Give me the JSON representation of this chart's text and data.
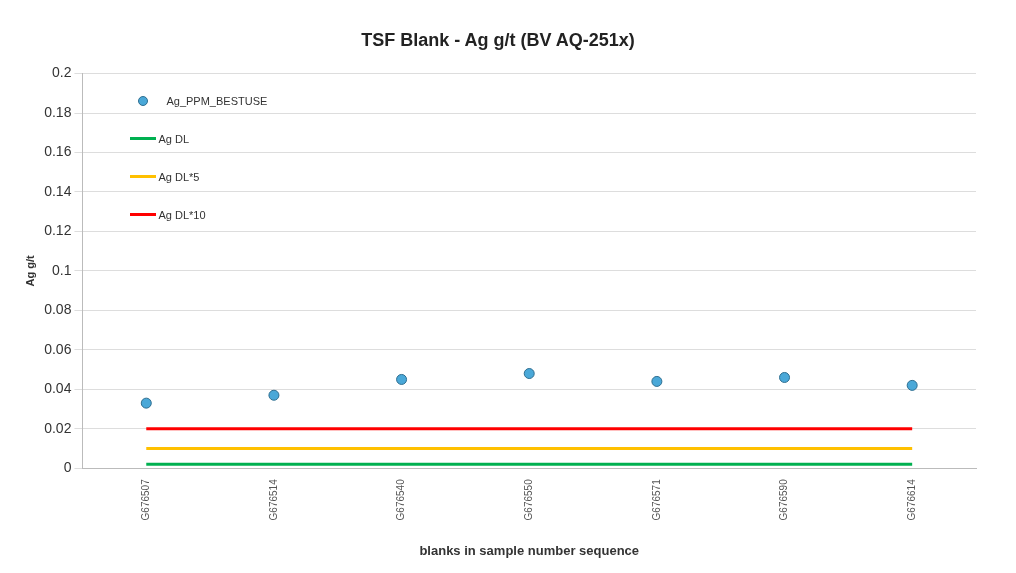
{
  "chart_data": {
    "type": "scatter",
    "title": "TSF Blank - Ag g/t (BV AQ-251x)",
    "xlabel": "blanks in sample number sequence",
    "ylabel": "Ag g/t",
    "categories": [
      "G676507",
      "G676514",
      "G676540",
      "G676550",
      "G676571",
      "G676590",
      "G676614"
    ],
    "series": [
      {
        "name": "Ag_PPM_BESTUSE",
        "color": "#4aa8d8",
        "marker": "circle",
        "values": [
          0.033,
          0.037,
          0.045,
          0.048,
          0.044,
          0.046,
          0.042
        ]
      },
      {
        "name": "Ag DL",
        "type": "line",
        "color": "#00b050",
        "marker": "none",
        "values": [
          0.002,
          0.002,
          0.002,
          0.002,
          0.002,
          0.002,
          0.002
        ]
      },
      {
        "name": "Ag DL*5",
        "type": "line",
        "color": "#ffc000",
        "marker": "none",
        "values": [
          0.01,
          0.01,
          0.01,
          0.01,
          0.01,
          0.01,
          0.01
        ]
      },
      {
        "name": "Ag DL*10",
        "type": "line",
        "color": "#ff0000",
        "marker": "none",
        "values": [
          0.02,
          0.02,
          0.02,
          0.02,
          0.02,
          0.02,
          0.02
        ]
      }
    ],
    "ylim": [
      0,
      0.2
    ],
    "yticks": [
      0,
      0.02,
      0.04,
      0.06,
      0.08,
      0.1,
      0.12,
      0.14,
      0.16,
      0.18,
      0.2
    ],
    "grid": "y",
    "legend": "top left"
  }
}
